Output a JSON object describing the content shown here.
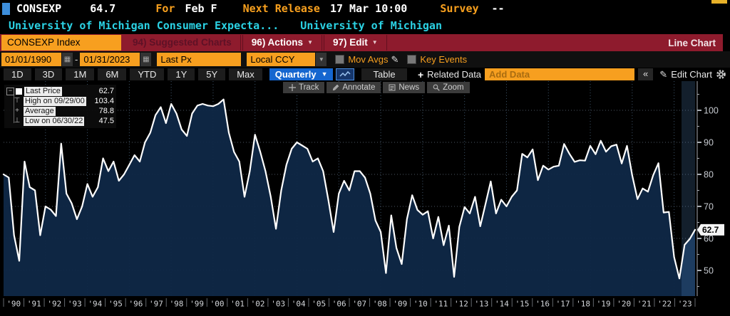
{
  "header": {
    "ticker": "CONSEXP",
    "last_value": "64.7",
    "for_label": "For",
    "period": "Feb F",
    "next_release_label": "Next Release",
    "next_release_value": "17 Mar 10:00",
    "survey_label": "Survey",
    "survey_value": "--",
    "description": "University of Michigan Consumer Expecta...",
    "source": "University of Michigan"
  },
  "ribbon": {
    "security": "CONSEXP Index",
    "suggested_charts": "94) Suggested Charts",
    "actions": "96) Actions",
    "edit": "97) Edit",
    "chart_type": "Line Chart"
  },
  "toolbar": {
    "start_date": "01/01/1990",
    "date_separator": "-",
    "end_date": "01/31/2023",
    "price_field": "Last Px",
    "currency": "Local CCY",
    "mov_avgs_label": "Mov Avgs",
    "key_events_label": "Key Events"
  },
  "ranges": [
    "1D",
    "3D",
    "1M",
    "6M",
    "YTD",
    "1Y",
    "5Y",
    "Max"
  ],
  "period": {
    "selected": "Quarterly"
  },
  "view": {
    "table_label": "Table",
    "related_data_label": "Related Data",
    "add_data_placeholder": "Add Data",
    "collapse_label": "«",
    "edit_chart_label": "Edit Chart"
  },
  "chart_tools": [
    "Track",
    "Annotate",
    "News",
    "Zoom"
  ],
  "legend": {
    "rows": [
      {
        "label": "Last Price",
        "value": "62.7"
      },
      {
        "label": "High on 09/29/00",
        "value": "103.4"
      },
      {
        "label": "Average",
        "value": "78.8"
      },
      {
        "label": "Low on 06/30/22",
        "value": "47.5"
      }
    ]
  },
  "colors": {
    "accent_orange": "#f79f1f",
    "ribbon_red": "#8e1b2d",
    "header_cyan": "#2bd2e4",
    "area_fill": "#0f2847",
    "line_color": "#ffffff",
    "selected_blue": "#1566cf"
  },
  "chart_data": {
    "type": "area",
    "title": "CONSEXP Index - University of Michigan Consumer Expectations",
    "frequency": "quarterly",
    "x_start_year": 1990,
    "x_end_year": 2023,
    "x_tick_labels": [
      "'90",
      "'91",
      "'92",
      "'93",
      "'94",
      "'95",
      "'96",
      "'97",
      "'98",
      "'99",
      "'00",
      "'01",
      "'02",
      "'03",
      "'04",
      "'05",
      "'06",
      "'07",
      "'08",
      "'09",
      "'10",
      "'11",
      "'12",
      "'13",
      "'14",
      "'15",
      "'16",
      "'17",
      "'18",
      "'19",
      "'20",
      "'21",
      "'22",
      "'23"
    ],
    "y_ticks": [
      50,
      60,
      70,
      80,
      90,
      100
    ],
    "y_minor_ticks": [
      45,
      55,
      65,
      75,
      85,
      95,
      105
    ],
    "ylim": [
      41,
      107
    ],
    "grid": true,
    "legend_position": "top-left",
    "last_price": 62.7,
    "high": {
      "date": "09/29/00",
      "value": 103.4
    },
    "average": 78.8,
    "low": {
      "date": "06/30/22",
      "value": 47.5
    },
    "values": [
      80,
      79,
      61,
      53,
      84,
      76,
      75,
      61,
      70,
      69,
      67,
      89.6,
      74,
      71,
      66,
      70,
      77,
      73,
      76,
      85,
      81,
      84,
      78,
      80,
      83,
      86,
      84,
      90,
      93,
      98.5,
      101,
      96,
      102,
      99,
      94,
      92,
      99,
      101.5,
      102,
      101.5,
      101.3,
      102,
      103.4,
      93,
      87,
      84,
      73,
      81,
      92.4,
      87,
      81,
      73,
      63,
      75,
      83,
      88,
      90,
      89,
      88,
      84,
      85,
      81,
      72,
      62,
      74,
      78,
      75,
      81,
      81,
      79,
      74,
      65.6,
      62,
      49.2,
      67.2,
      57,
      52,
      66,
      73.5,
      68.9,
      67.4,
      68.5,
      60,
      66.7,
      57.9,
      64,
      48,
      63.6,
      69.8,
      67.8,
      73,
      63.8,
      70.8,
      77.8,
      67.8,
      72.1,
      70,
      73,
      75,
      86.4,
      85.3,
      87.8,
      78.2,
      82.7,
      81.5,
      82.4,
      82.7,
      89.5,
      86.5,
      83.9,
      84.4,
      84.3,
      88.9,
      86.3,
      90.5,
      87.1,
      88.8,
      89.3,
      83.4,
      88.9,
      79.7,
      72.3,
      75.6,
      74.6,
      79.7,
      83.5,
      68.1,
      68.3,
      54.2,
      47.5,
      58,
      59.9,
      62.7
    ]
  }
}
